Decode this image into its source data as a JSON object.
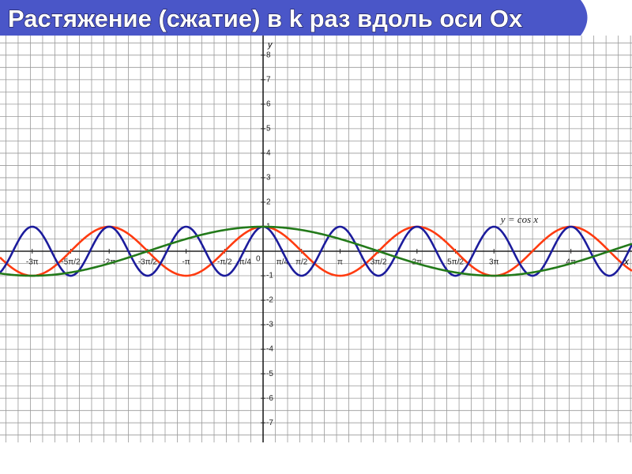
{
  "chart_data": {
    "type": "function",
    "title": "Растяжение (сжатие) в k раз вдоль оси Ox",
    "x_label": "x",
    "y_label": "y",
    "annotation": "y = cos x",
    "xlim": [
      -10.74,
      15.06
    ],
    "ylim": [
      -7.8,
      8.8
    ],
    "grid": true,
    "grid_step": 0.5,
    "xticks": [
      {
        "value": -9.425,
        "label": "-3π"
      },
      {
        "value": -7.854,
        "label": "-5π/2"
      },
      {
        "value": -6.283,
        "label": "-2π"
      },
      {
        "value": -4.712,
        "label": "-3π/2"
      },
      {
        "value": -3.142,
        "label": "-π"
      },
      {
        "value": -1.571,
        "label": "-π/2"
      },
      {
        "value": -0.785,
        "label": "-π/4"
      },
      {
        "value": 0.785,
        "label": "π/4"
      },
      {
        "value": 1.571,
        "label": "π/2"
      },
      {
        "value": 3.142,
        "label": "π"
      },
      {
        "value": 4.712,
        "label": "3π/2"
      },
      {
        "value": 6.283,
        "label": "2π"
      },
      {
        "value": 7.854,
        "label": "5π/2"
      },
      {
        "value": 9.425,
        "label": "3π"
      },
      {
        "value": 12.566,
        "label": "4π"
      }
    ],
    "yticks": [
      -7,
      -6,
      -5,
      -4,
      -3,
      -2,
      -1,
      0,
      1,
      2,
      3,
      4,
      5,
      6,
      7,
      8
    ],
    "series": [
      {
        "name": "y = cos x",
        "color": "#ff3b10",
        "frequency": 1
      },
      {
        "color": "#1c1c9c",
        "frequency": 2
      },
      {
        "color": "#237a1a",
        "frequency": 0.3333
      }
    ]
  }
}
